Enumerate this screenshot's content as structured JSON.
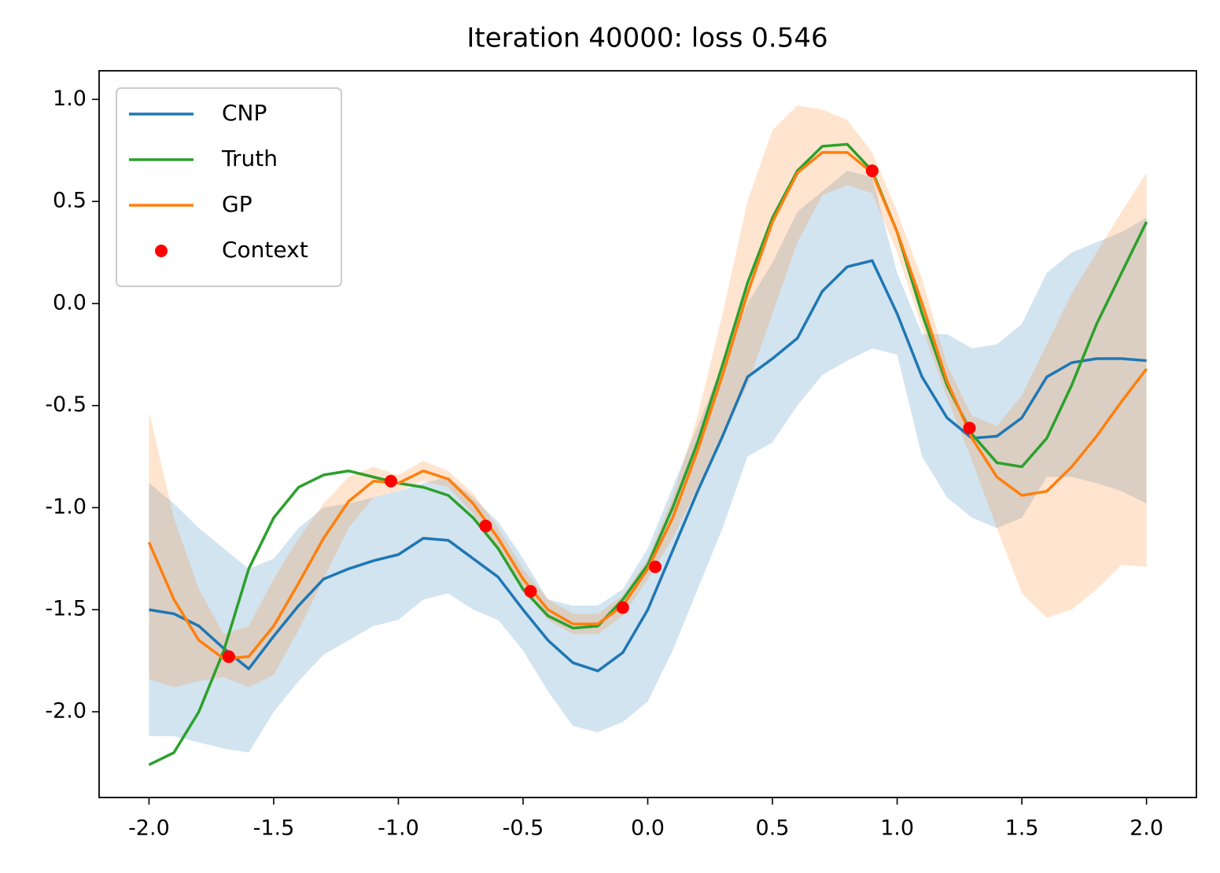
{
  "chart_data": {
    "type": "line",
    "title": "Iteration 40000: loss 0.546",
    "x": [
      -2.0,
      -1.9,
      -1.8,
      -1.7,
      -1.6,
      -1.5,
      -1.4,
      -1.3,
      -1.2,
      -1.1,
      -1.0,
      -0.9,
      -0.8,
      -0.7,
      -0.6,
      -0.5,
      -0.4,
      -0.3,
      -0.2,
      -0.1,
      0.0,
      0.1,
      0.2,
      0.3,
      0.4,
      0.5,
      0.6,
      0.7,
      0.8,
      0.9,
      1.0,
      1.1,
      1.2,
      1.3,
      1.4,
      1.5,
      1.6,
      1.7,
      1.8,
      1.9,
      2.0
    ],
    "series": [
      {
        "name": "CNP",
        "color": "#1f77b4",
        "values": [
          -1.5,
          -1.52,
          -1.58,
          -1.69,
          -1.79,
          -1.63,
          -1.48,
          -1.35,
          -1.3,
          -1.26,
          -1.23,
          -1.15,
          -1.16,
          -1.25,
          -1.34,
          -1.5,
          -1.65,
          -1.76,
          -1.8,
          -1.71,
          -1.5,
          -1.21,
          -0.92,
          -0.65,
          -0.36,
          -0.27,
          -0.17,
          0.06,
          0.18,
          0.21,
          -0.05,
          -0.36,
          -0.56,
          -0.66,
          -0.65,
          -0.56,
          -0.36,
          -0.29,
          -0.27,
          -0.27,
          -0.28
        ],
        "upper": [
          -0.88,
          -0.98,
          -1.1,
          -1.2,
          -1.3,
          -1.25,
          -1.1,
          -1.0,
          -0.98,
          -0.95,
          -0.92,
          -0.88,
          -0.85,
          -0.95,
          -1.07,
          -1.25,
          -1.45,
          -1.48,
          -1.48,
          -1.4,
          -1.2,
          -0.9,
          -0.6,
          -0.3,
          0.0,
          0.2,
          0.45,
          0.55,
          0.65,
          0.62,
          0.15,
          -0.15,
          -0.15,
          -0.22,
          -0.2,
          -0.1,
          0.15,
          0.25,
          0.3,
          0.35,
          0.42
        ],
        "lower": [
          -2.12,
          -2.12,
          -2.15,
          -2.18,
          -2.2,
          -2.0,
          -1.85,
          -1.72,
          -1.65,
          -1.58,
          -1.55,
          -1.45,
          -1.42,
          -1.5,
          -1.55,
          -1.7,
          -1.9,
          -2.07,
          -2.1,
          -2.05,
          -1.95,
          -1.7,
          -1.4,
          -1.1,
          -0.75,
          -0.68,
          -0.5,
          -0.35,
          -0.28,
          -0.22,
          -0.25,
          -0.75,
          -0.95,
          -1.05,
          -1.1,
          -1.05,
          -0.85,
          -0.85,
          -0.88,
          -0.92,
          -0.98
        ]
      },
      {
        "name": "Truth",
        "color": "#2ca02c",
        "values": [
          -2.26,
          -2.2,
          -2.0,
          -1.7,
          -1.3,
          -1.05,
          -0.9,
          -0.84,
          -0.82,
          -0.85,
          -0.88,
          -0.9,
          -0.94,
          -1.05,
          -1.2,
          -1.4,
          -1.53,
          -1.59,
          -1.58,
          -1.45,
          -1.28,
          -1.0,
          -0.68,
          -0.3,
          0.1,
          0.42,
          0.65,
          0.77,
          0.78,
          0.65,
          0.35,
          -0.05,
          -0.4,
          -0.64,
          -0.78,
          -0.8,
          -0.66,
          -0.4,
          -0.1,
          0.15,
          0.4
        ]
      },
      {
        "name": "GP",
        "color": "#ff7f0e",
        "values": [
          -1.17,
          -1.45,
          -1.65,
          -1.74,
          -1.73,
          -1.58,
          -1.37,
          -1.15,
          -0.97,
          -0.87,
          -0.88,
          -0.82,
          -0.86,
          -0.98,
          -1.15,
          -1.35,
          -1.5,
          -1.57,
          -1.57,
          -1.48,
          -1.3,
          -1.05,
          -0.72,
          -0.35,
          0.05,
          0.4,
          0.64,
          0.74,
          0.74,
          0.64,
          0.35,
          0.0,
          -0.38,
          -0.66,
          -0.85,
          -0.94,
          -0.92,
          -0.8,
          -0.65,
          -0.48,
          -0.32
        ],
        "upper": [
          -0.53,
          -1.05,
          -1.4,
          -1.62,
          -1.58,
          -1.35,
          -1.15,
          -0.98,
          -0.85,
          -0.8,
          -0.84,
          -0.77,
          -0.82,
          -0.93,
          -1.1,
          -1.3,
          -1.45,
          -1.52,
          -1.52,
          -1.43,
          -1.25,
          -0.95,
          -0.55,
          -0.05,
          0.5,
          0.85,
          0.97,
          0.95,
          0.9,
          0.74,
          0.45,
          0.12,
          -0.3,
          -0.55,
          -0.6,
          -0.45,
          -0.2,
          0.05,
          0.25,
          0.45,
          0.64
        ],
        "lower": [
          -1.84,
          -1.88,
          -1.85,
          -1.83,
          -1.88,
          -1.82,
          -1.6,
          -1.35,
          -1.1,
          -0.95,
          -0.92,
          -0.87,
          -0.9,
          -1.03,
          -1.2,
          -1.4,
          -1.55,
          -1.62,
          -1.62,
          -1.53,
          -1.35,
          -1.15,
          -0.9,
          -0.65,
          -0.4,
          -0.05,
          0.3,
          0.53,
          0.58,
          0.54,
          0.25,
          -0.12,
          -0.46,
          -0.77,
          -1.1,
          -1.42,
          -1.54,
          -1.5,
          -1.4,
          -1.28,
          -1.29
        ]
      },
      {
        "name": "Context",
        "type": "scatter",
        "color": "#ff0000",
        "x": [
          -1.68,
          -1.03,
          -0.65,
          -0.47,
          -0.1,
          0.03,
          0.9,
          1.29
        ],
        "values": [
          -1.73,
          -0.87,
          -1.09,
          -1.41,
          -1.49,
          -1.29,
          0.65,
          -0.61
        ]
      }
    ],
    "xlim": [
      -2.2,
      2.2
    ],
    "ylim": [
      -2.42,
      1.14
    ],
    "xticks": [
      {
        "value": -2,
        "label": "-2.0"
      },
      {
        "value": -1.5,
        "label": "-1.5"
      },
      {
        "value": -1,
        "label": "-1.0"
      },
      {
        "value": -0.5,
        "label": "-0.5"
      },
      {
        "value": 0,
        "label": "0.0"
      },
      {
        "value": 0.5,
        "label": "0.5"
      },
      {
        "value": 1,
        "label": "1.0"
      },
      {
        "value": 1.5,
        "label": "1.5"
      },
      {
        "value": 2,
        "label": "2.0"
      }
    ],
    "yticks": [
      {
        "value": -2,
        "label": "-2.0"
      },
      {
        "value": -1.5,
        "label": "-1.5"
      },
      {
        "value": -1,
        "label": "-1.0"
      },
      {
        "value": -0.5,
        "label": "-0.5"
      },
      {
        "value": 0,
        "label": "0.0"
      },
      {
        "value": 0.5,
        "label": "0.5"
      },
      {
        "value": 1,
        "label": "1.0"
      }
    ],
    "grid": false,
    "legend": "upper left"
  }
}
